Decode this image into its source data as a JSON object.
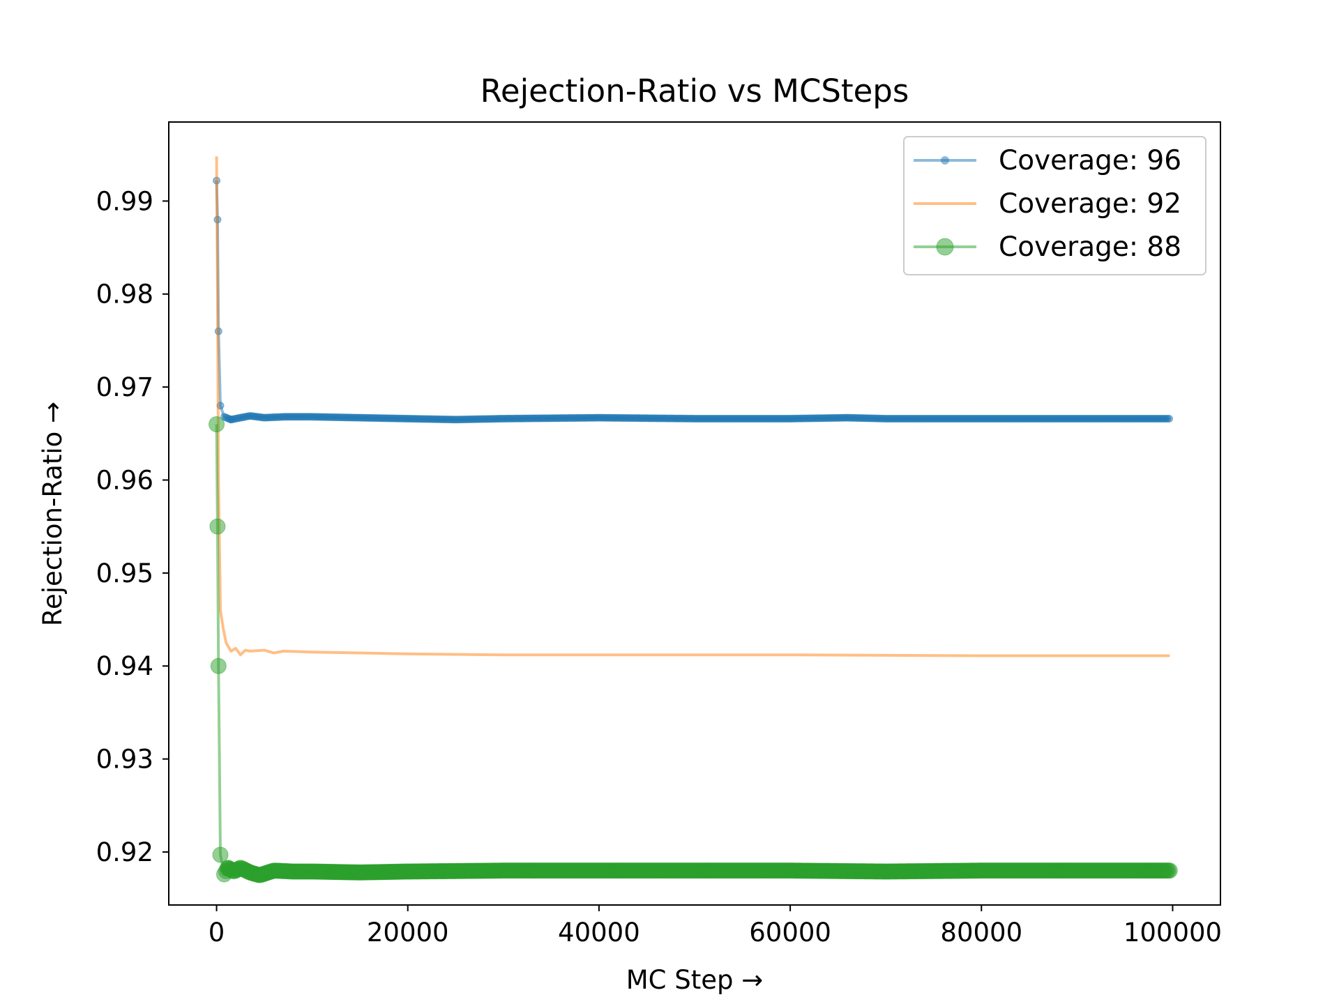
{
  "chart_data": {
    "type": "line",
    "title": "Rejection-Ratio vs MCSteps",
    "xlabel": "MC Step →",
    "ylabel": "Rejection-Ratio →",
    "xlim": [
      -5000,
      105000
    ],
    "ylim": [
      0.9143,
      0.9985
    ],
    "grid": false,
    "legend_position": "top-right",
    "x_ticks": [
      0,
      20000,
      40000,
      60000,
      80000,
      100000
    ],
    "x_tick_labels": [
      "0",
      "20000",
      "40000",
      "60000",
      "80000",
      "100000"
    ],
    "y_ticks": [
      0.92,
      0.93,
      0.94,
      0.95,
      0.96,
      0.97,
      0.98,
      0.99
    ],
    "y_tick_labels": [
      "0.92",
      "0.93",
      "0.94",
      "0.95",
      "0.96",
      "0.97",
      "0.98",
      "0.99"
    ],
    "series": [
      {
        "name": "Coverage: 96",
        "legend_label": "Coverage: 96",
        "color": "#1f77b4",
        "opacity": 0.5,
        "marker": "dot",
        "x": [
          0,
          100,
          200,
          400,
          800,
          1500,
          2500,
          3500,
          5000,
          7000,
          10000,
          15000,
          20000,
          25000,
          30000,
          40000,
          50000,
          60000,
          66000,
          70000,
          80000,
          90000,
          99700
        ],
        "y": [
          0.9922,
          0.988,
          0.976,
          0.968,
          0.9668,
          0.9665,
          0.9667,
          0.9669,
          0.9667,
          0.9668,
          0.9668,
          0.9667,
          0.9666,
          0.9665,
          0.9666,
          0.9667,
          0.9666,
          0.9666,
          0.9667,
          0.9666,
          0.9666,
          0.9666,
          0.9666
        ]
      },
      {
        "name": "Coverage: 92",
        "legend_label": "Coverage: 92",
        "color": "#ff7f0e",
        "opacity": 0.5,
        "marker": "none",
        "x": [
          0,
          100,
          200,
          400,
          700,
          1000,
          1500,
          2000,
          2500,
          3000,
          3500,
          5000,
          6000,
          7000,
          10000,
          15000,
          20000,
          30000,
          40000,
          60000,
          80000,
          99700
        ],
        "y": [
          0.9948,
          0.98,
          0.96,
          0.946,
          0.944,
          0.9425,
          0.9416,
          0.9419,
          0.9412,
          0.9417,
          0.9416,
          0.9417,
          0.9414,
          0.9416,
          0.9415,
          0.9414,
          0.9413,
          0.9412,
          0.9412,
          0.9412,
          0.9411,
          0.9411
        ]
      },
      {
        "name": "Coverage: 88",
        "legend_label": "Coverage: 88",
        "color": "#2ca02c",
        "opacity": 0.5,
        "marker": "circle",
        "x": [
          0,
          100,
          200,
          400,
          800,
          1200,
          1800,
          2500,
          3500,
          4500,
          6000,
          8000,
          10000,
          15000,
          20000,
          30000,
          40000,
          50000,
          60000,
          70000,
          80000,
          90000,
          99700
        ],
        "y": [
          0.966,
          0.955,
          0.94,
          0.9197,
          0.9176,
          0.9183,
          0.9179,
          0.9183,
          0.9178,
          0.9175,
          0.918,
          0.9179,
          0.9179,
          0.9178,
          0.9179,
          0.918,
          0.918,
          0.918,
          0.918,
          0.9179,
          0.918,
          0.918,
          0.918
        ]
      }
    ]
  }
}
